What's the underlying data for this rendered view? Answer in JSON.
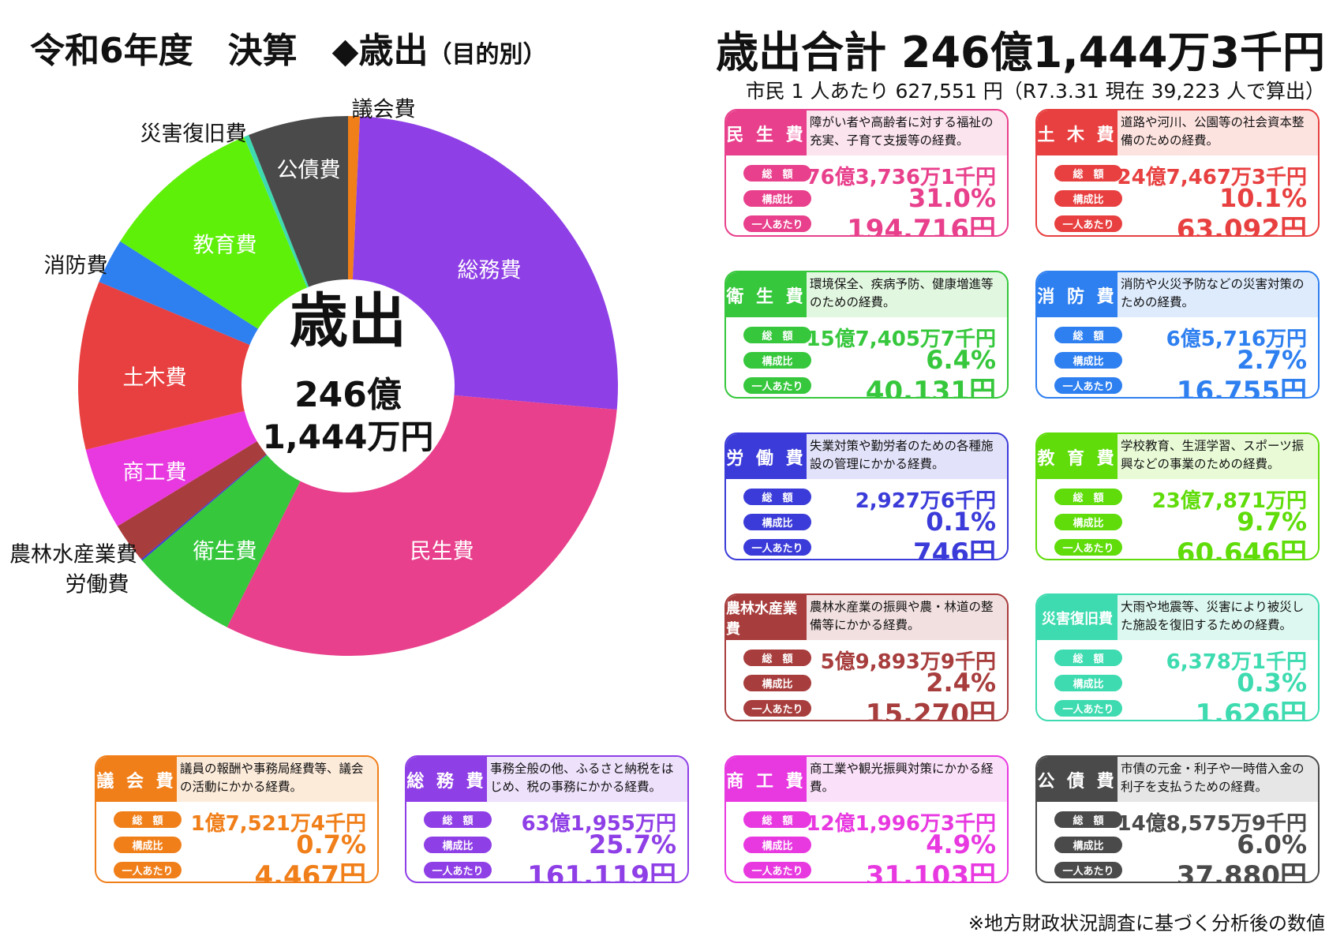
{
  "header": {
    "title": "令和6年度　決算　◆歳出",
    "title_sub": "（目的別）",
    "total": "歳出合計 246億1,444万3千円",
    "per_capita_note": "市民 1 人あたり 627,551 円（R7.3.31 現在 39,223 人で算出）"
  },
  "center": {
    "line1": "歳出",
    "line2": "246億",
    "line3": "1,444万円"
  },
  "footnote": "※地方財政状況調査に基づく分析後の数値",
  "labels": {
    "total": "総　額",
    "ratio": "構成比",
    "per_person": "一人あたり"
  },
  "chart_data": {
    "type": "pie",
    "donut": true,
    "series": [
      {
        "values": [
          {
            "name": "議会費",
            "value": 0.7,
            "color": "#F07F1A",
            "label_outside": true
          },
          {
            "name": "総務費",
            "value": 25.7,
            "color": "#8F3FE6",
            "label_outside": false
          },
          {
            "name": "民生費",
            "value": 31.0,
            "color": "#E8408C",
            "label_outside": false
          },
          {
            "name": "衛生費",
            "value": 6.4,
            "color": "#36C73C",
            "label_outside": false
          },
          {
            "name": "労働費",
            "value": 0.1,
            "color": "#3B3BD9",
            "label_outside": true
          },
          {
            "name": "農林水産業費",
            "value": 2.4,
            "color": "#A83D3D",
            "label_outside": true
          },
          {
            "name": "商工費",
            "value": 4.9,
            "color": "#E838E0",
            "label_outside": false
          },
          {
            "name": "土木費",
            "value": 10.1,
            "color": "#E84040",
            "label_outside": false
          },
          {
            "name": "消防費",
            "value": 2.7,
            "color": "#2E7FF0",
            "label_outside": true
          },
          {
            "name": "教育費",
            "value": 9.7,
            "color": "#5FF00A",
            "label_outside": false
          },
          {
            "name": "災害復旧費",
            "value": 0.3,
            "color": "#3EDBB0",
            "label_outside": true
          },
          {
            "name": "公債費",
            "value": 6.0,
            "color": "#4A4A4A",
            "label_outside": false
          }
        ]
      }
    ]
  },
  "cards": [
    {
      "id": "minsei",
      "name": "民 生 費",
      "desc": "障がい者や高齢者に対する福祉の充実、子育て支援等の経費。",
      "total": "76億3,736万1千円",
      "ratio": "31.0%",
      "per_person": "194,716円",
      "color": "#E8408C",
      "head_bg": "#FCE4EF"
    },
    {
      "id": "doboku",
      "name": "土 木 費",
      "desc": "道路や河川、公園等の社会資本整備のための経費。",
      "total": "24億7,467万3千円",
      "ratio": "10.1%",
      "per_person": "63,092円",
      "color": "#E84040",
      "head_bg": "#FDE3E0"
    },
    {
      "id": "eisei",
      "name": "衛 生 費",
      "desc": "環境保全、疾病予防、健康増進等のための経費。",
      "total": "15億7,405万7千円",
      "ratio": "6.4%",
      "per_person": "40,131円",
      "color": "#36C73C",
      "head_bg": "#E2F7E0"
    },
    {
      "id": "shobo",
      "name": "消 防 費",
      "desc": "消防や火災予防などの災害対策のための経費。",
      "total": "6億5,716万円",
      "ratio": "2.7%",
      "per_person": "16,755円",
      "color": "#2E7FF0",
      "head_bg": "#DDEBFD"
    },
    {
      "id": "rodo",
      "name": "労 働 費",
      "desc": "失業対策や勤労者のための各種施設の管理にかかる経費。",
      "total": "2,927万6千円",
      "ratio": "0.1%",
      "per_person": "746円",
      "color": "#3B3BD9",
      "head_bg": "#E2E2FA"
    },
    {
      "id": "kyoiku",
      "name": "教 育 費",
      "desc": "学校教育、生涯学習、スポーツ振興などの事業のための経費。",
      "total": "23億7,871万円",
      "ratio": "9.7%",
      "per_person": "60,646円",
      "color": "#5FDC0A",
      "head_bg": "#E9FBD6"
    },
    {
      "id": "norin",
      "name": "農林水産業費",
      "desc": "農林水産業の振興や農・林道の整備等にかかる経費。",
      "total": "5億9,893万9千円",
      "ratio": "2.4%",
      "per_person": "15,270円",
      "color": "#A83D3D",
      "head_bg": "#F2E0E0",
      "long": true
    },
    {
      "id": "saigai",
      "name": "災害復旧費",
      "desc": "大雨や地震等、災害により被災した施設を復旧するための経費。",
      "total": "6,378万1千円",
      "ratio": "0.3%",
      "per_person": "1,626円",
      "color": "#3EDBB0",
      "head_bg": "#DDF8F0",
      "long": true
    },
    {
      "id": "gikai",
      "name": "議 会 費",
      "desc": "議員の報酬や事務局経費等、議会の活動にかかる経費。",
      "total": "1億7,521万4千円",
      "ratio": "0.7%",
      "per_person": "4,467円",
      "color": "#F07F1A",
      "head_bg": "#FDEBDA"
    },
    {
      "id": "somu",
      "name": "総 務 費",
      "desc": "事務全般の他、ふるさと納税をはじめ、税の事務にかかる経費。",
      "total": "63億1,955万円",
      "ratio": "25.7%",
      "per_person": "161,119円",
      "color": "#8F3FE6",
      "head_bg": "#EEE1FB"
    },
    {
      "id": "shoko",
      "name": "商 工 費",
      "desc": "商工業や観光振興対策にかかる経費。",
      "total": "12億1,996万3千円",
      "ratio": "4.9%",
      "per_person": "31,103円",
      "color": "#E838E0",
      "head_bg": "#FBE0FA"
    },
    {
      "id": "kosai",
      "name": "公 債 費",
      "desc": "市債の元金・利子や一時借入金の利子を支払うための経費。",
      "total": "14億8,575万9千円",
      "ratio": "6.0%",
      "per_person": "37,880円",
      "color": "#4A4A4A",
      "head_bg": "#E6E6E6"
    }
  ]
}
